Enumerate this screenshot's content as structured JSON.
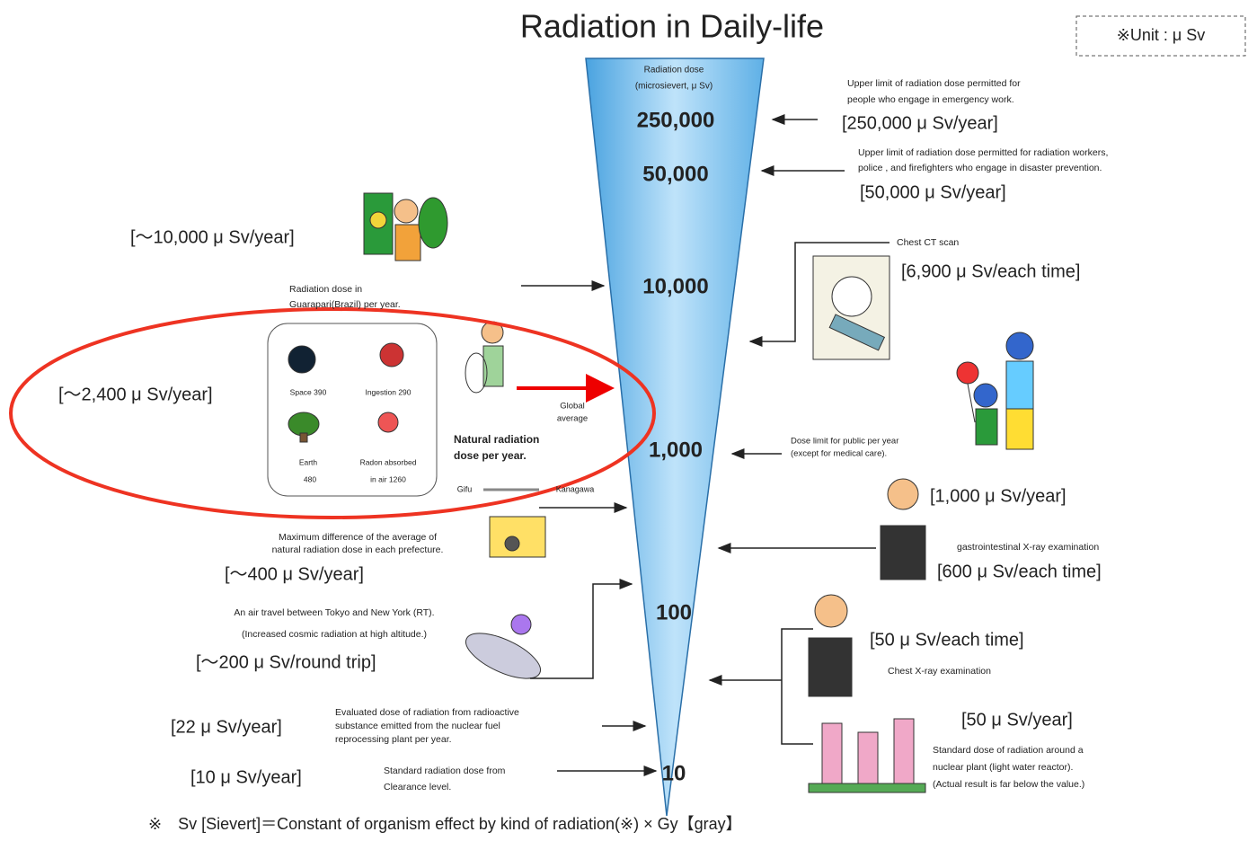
{
  "title": "Radiation in Daily-life",
  "unit_note": "※Unit : μ Sv",
  "scale": {
    "caption": [
      "Radiation dose",
      "(microsievert, μ Sv)"
    ],
    "labels": [
      "250,000",
      "50,000",
      "10,000",
      "1,000",
      "100",
      "10"
    ]
  },
  "left_items": [
    {
      "dose": "[～10,000 μ Sv/year]",
      "desc": [
        "Radiation dose in",
        "Guarapari(Brazil) per year."
      ]
    },
    {
      "dose": "[～2,400 μ Sv/year]",
      "desc": [
        "Natural radiation",
        "dose per year."
      ]
    },
    {
      "dose": "[～400 μ Sv/year]",
      "desc": [
        "Maximum difference of the average of",
        "natural radiation dose in each prefecture."
      ]
    },
    {
      "dose": "[～200 μ Sv/round trip]",
      "desc": [
        "An air travel between Tokyo and New York (RT).",
        "(Increased cosmic radiation at high altitude.)"
      ]
    },
    {
      "dose": "[22 μ Sv/year]",
      "desc": [
        "Evaluated dose of radiation from radioactive",
        "substance emitted from the nuclear fuel",
        "reprocessing plant per year."
      ]
    },
    {
      "dose": "[10 μ Sv/year]",
      "desc": [
        "Standard radiation dose from",
        "Clearance level."
      ]
    }
  ],
  "natural": {
    "components": [
      "Space 390",
      "Ingestion 290",
      "Earth",
      "480",
      "Radon absorbed",
      "in air  1260"
    ],
    "global": [
      "Global",
      "average"
    ],
    "prefectures": [
      "Gifu",
      "Kanagawa"
    ]
  },
  "right_items": [
    {
      "dose": "[250,000 μ Sv/year]",
      "desc": [
        "Upper limit of radiation dose permitted for",
        "people who engage in emergency work."
      ]
    },
    {
      "dose": "[50,000 μ Sv/year]",
      "desc": [
        "Upper limit of radiation dose permitted for radiation workers,",
        "police , and firefighters who engage in  disaster prevention."
      ]
    },
    {
      "dose": "[6,900 μ Sv/each time]",
      "desc": [
        "Chest CT scan"
      ]
    },
    {
      "dose": "[1,000 μ Sv/year]",
      "desc": [
        "Dose limit for public per year",
        "(except for medical care)."
      ]
    },
    {
      "dose": "[600 μ Sv/each time]",
      "desc": [
        "gastrointestinal X-ray examination"
      ]
    },
    {
      "dose": "[50 μ Sv/each time]",
      "desc": [
        "Chest X-ray examination"
      ]
    },
    {
      "dose": "[50 μ Sv/year]",
      "desc": [
        "Standard dose of radiation around a",
        "nuclear plant (light water reactor).",
        "(Actual result is far below the value.)"
      ]
    }
  ],
  "footnote": "※　Sv [Sievert]＝Constant of organism effect by kind of radiation(※)  × Gy【gray】"
}
